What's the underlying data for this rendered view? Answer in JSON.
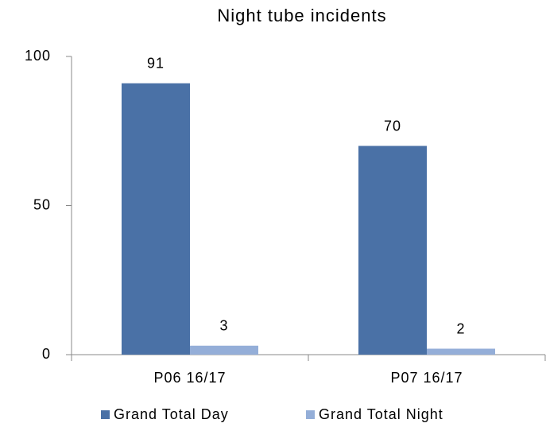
{
  "chart_data": {
    "type": "bar",
    "title": "Night tube incidents",
    "categories": [
      "P06 16/17",
      "P07 16/17"
    ],
    "series": [
      {
        "name": "Grand Total Day",
        "color": "#4a71a6",
        "values": [
          91,
          70
        ]
      },
      {
        "name": "Grand Total Night",
        "color": "#94aed8",
        "values": [
          3,
          2
        ]
      }
    ],
    "ylim": [
      0,
      100
    ],
    "yticks": [
      0,
      50,
      100
    ],
    "grid": false,
    "legend": "bottom"
  }
}
